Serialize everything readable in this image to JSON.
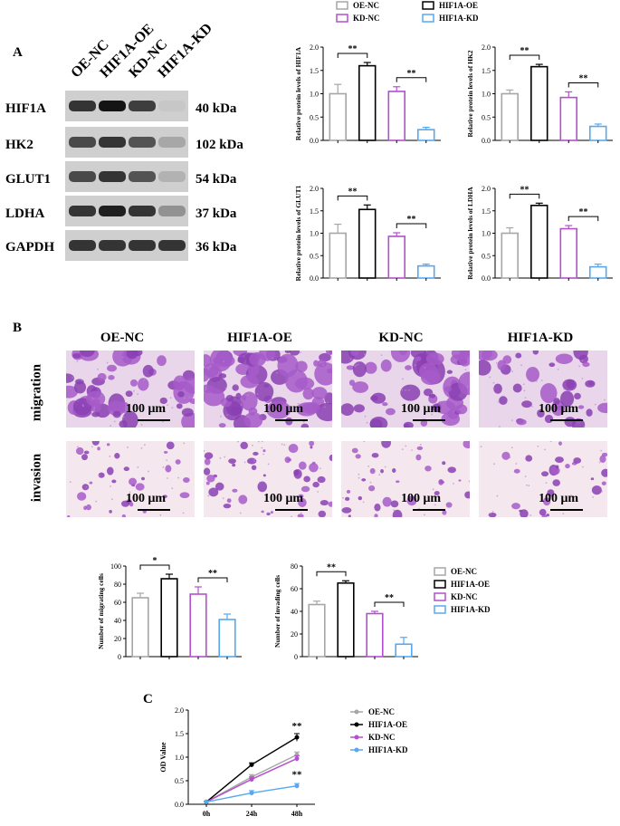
{
  "panel_labels": {
    "a": "A",
    "b": "B",
    "c": "C"
  },
  "groups": [
    "OE-NC",
    "HIF1A-OE",
    "KD-NC",
    "HIF1A-KD"
  ],
  "colors": {
    "OE-NC": "#a6a6a6",
    "HIF1A-OE": "#000000",
    "KD-NC": "#b44fcf",
    "HIF1A-KD": "#57a8f0"
  },
  "western_blot": {
    "lanes": [
      "OE-NC",
      "HIF1A-OE",
      "KD-NC",
      "HIF1A-KD"
    ],
    "proteins": [
      {
        "name": "HIF1A",
        "kda": "40 kDa",
        "intensity": [
          0.85,
          1.0,
          0.8,
          0.15
        ]
      },
      {
        "name": "HK2",
        "kda": "102 kDa",
        "intensity": [
          0.75,
          0.85,
          0.7,
          0.3
        ]
      },
      {
        "name": "GLUT1",
        "kda": "54 kDa",
        "intensity": [
          0.75,
          0.85,
          0.7,
          0.25
        ]
      },
      {
        "name": "LDHA",
        "kda": "37 kDa",
        "intensity": [
          0.85,
          0.95,
          0.85,
          0.4
        ]
      },
      {
        "name": "GAPDH",
        "kda": "36 kDa",
        "intensity": [
          0.85,
          0.85,
          0.85,
          0.85
        ]
      }
    ]
  },
  "legend_top": [
    "OE-NC",
    "HIF1A-OE",
    "KD-NC",
    "HIF1A-KD"
  ],
  "micro": {
    "rows": [
      "migration",
      "invasion"
    ],
    "scale": "100 μm",
    "density": {
      "migration": [
        0.45,
        0.7,
        0.5,
        0.25
      ],
      "invasion": [
        0.2,
        0.35,
        0.22,
        0.12
      ]
    }
  },
  "legend_mid": [
    "OE-NC",
    "HIF1A-OE",
    "KD-NC",
    "HIF1A-KD"
  ],
  "legend_c": [
    "OE-NC",
    "HIF1A-OE",
    "KD-NC",
    "HIF1A-KD"
  ],
  "chart_data": [
    {
      "type": "bar",
      "ylabel": "Relative protein levels of HIF1A",
      "categories": [
        "OE-NC",
        "HIF1A-OE",
        "KD-NC",
        "HIF1A-KD"
      ],
      "values": [
        1.0,
        1.6,
        1.05,
        0.23
      ],
      "errors": [
        0.2,
        0.07,
        0.1,
        0.05
      ],
      "ylim": [
        0,
        2
      ],
      "yticks": [
        "0.0",
        "0.5",
        "1.0",
        "1.5",
        "2.0"
      ],
      "sig": [
        {
          "pair": [
            0,
            1
          ],
          "text": "**"
        },
        {
          "pair": [
            2,
            3
          ],
          "text": "**"
        }
      ]
    },
    {
      "type": "bar",
      "ylabel": "Relative protein levels of HK2",
      "categories": [
        "OE-NC",
        "HIF1A-OE",
        "KD-NC",
        "HIF1A-KD"
      ],
      "values": [
        1.0,
        1.58,
        0.92,
        0.3
      ],
      "errors": [
        0.08,
        0.05,
        0.12,
        0.05
      ],
      "ylim": [
        0,
        2
      ],
      "yticks": [
        "0.0",
        "0.5",
        "1.0",
        "1.5",
        "2.0"
      ],
      "sig": [
        {
          "pair": [
            0,
            1
          ],
          "text": "**"
        },
        {
          "pair": [
            2,
            3
          ],
          "text": "**"
        }
      ]
    },
    {
      "type": "bar",
      "ylabel": "Relative protein levels of GLUT1",
      "categories": [
        "OE-NC",
        "HIF1A-OE",
        "KD-NC",
        "HIF1A-KD"
      ],
      "values": [
        1.0,
        1.53,
        0.93,
        0.27
      ],
      "errors": [
        0.2,
        0.1,
        0.08,
        0.04
      ],
      "ylim": [
        0,
        2
      ],
      "yticks": [
        "0.0",
        "0.5",
        "1.0",
        "1.5",
        "2.0"
      ],
      "sig": [
        {
          "pair": [
            0,
            1
          ],
          "text": "**"
        },
        {
          "pair": [
            2,
            3
          ],
          "text": "**"
        }
      ]
    },
    {
      "type": "bar",
      "ylabel": "Relative protein levels of LDHA",
      "categories": [
        "OE-NC",
        "HIF1A-OE",
        "KD-NC",
        "HIF1A-KD"
      ],
      "values": [
        1.0,
        1.62,
        1.1,
        0.25
      ],
      "errors": [
        0.12,
        0.05,
        0.07,
        0.06
      ],
      "ylim": [
        0,
        2
      ],
      "yticks": [
        "0.0",
        "0.5",
        "1.0",
        "1.5",
        "2.0"
      ],
      "sig": [
        {
          "pair": [
            0,
            1
          ],
          "text": "**"
        },
        {
          "pair": [
            2,
            3
          ],
          "text": "**"
        }
      ]
    },
    {
      "type": "bar",
      "ylabel": "Number of migrating cells",
      "categories": [
        "OE-NC",
        "HIF1A-OE",
        "KD-NC",
        "HIF1A-KD"
      ],
      "values": [
        65,
        86,
        69,
        41
      ],
      "errors": [
        5,
        5,
        8,
        6
      ],
      "ylim": [
        0,
        100
      ],
      "yticks": [
        "0",
        "20",
        "40",
        "60",
        "80",
        "100"
      ],
      "sig": [
        {
          "pair": [
            0,
            1
          ],
          "text": "*"
        },
        {
          "pair": [
            2,
            3
          ],
          "text": "**"
        }
      ]
    },
    {
      "type": "bar",
      "ylabel": "Number of invading cells",
      "categories": [
        "OE-NC",
        "HIF1A-OE",
        "KD-NC",
        "HIF1A-KD"
      ],
      "values": [
        46,
        65,
        38,
        11
      ],
      "errors": [
        3,
        2,
        2,
        6
      ],
      "ylim": [
        0,
        80
      ],
      "yticks": [
        "0",
        "20",
        "40",
        "60",
        "80"
      ],
      "sig": [
        {
          "pair": [
            0,
            1
          ],
          "text": "**"
        },
        {
          "pair": [
            2,
            3
          ],
          "text": "**"
        }
      ]
    },
    {
      "type": "line",
      "ylabel": "OD Value",
      "x": [
        "0h",
        "24h",
        "48h"
      ],
      "ylim": [
        0,
        2
      ],
      "yticks": [
        "0.0",
        "0.5",
        "1.0",
        "1.5",
        "2.0"
      ],
      "series": [
        {
          "name": "OE-NC",
          "values": [
            0.05,
            0.58,
            1.05
          ],
          "errors": [
            0.01,
            0.05,
            0.06
          ]
        },
        {
          "name": "HIF1A-OE",
          "values": [
            0.05,
            0.84,
            1.42
          ],
          "errors": [
            0.01,
            0.04,
            0.08
          ]
        },
        {
          "name": "KD-NC",
          "values": [
            0.05,
            0.53,
            0.97
          ],
          "errors": [
            0.01,
            0.05,
            0.06
          ]
        },
        {
          "name": "HIF1A-KD",
          "values": [
            0.05,
            0.24,
            0.39
          ],
          "errors": [
            0.01,
            0.05,
            0.05
          ]
        }
      ],
      "annotations": [
        {
          "at": [
            2,
            1.42
          ],
          "text": "**"
        },
        {
          "at": [
            2,
            0.39
          ],
          "text": "**"
        }
      ]
    }
  ]
}
